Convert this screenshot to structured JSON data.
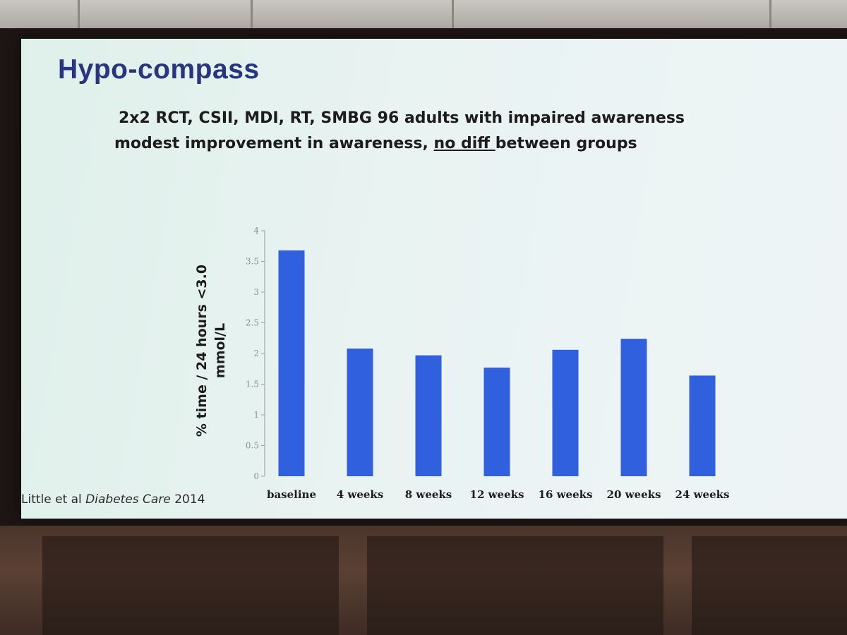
{
  "slide": {
    "title": "Hypo-compass",
    "subtitle_line1": "2x2 RCT, CSII, MDI, RT, SMBG 96 adults with impaired awareness",
    "subtitle_line2_pre": "modest improvement in awareness, ",
    "subtitle_line2_underlined": "no diff ",
    "subtitle_line2_post": "between groups",
    "citation_authors": "Little et al ",
    "citation_journal": "Diabetes Care",
    "citation_year": " 2014"
  },
  "chart_data": {
    "type": "bar",
    "title": "",
    "xlabel": "",
    "ylabel_line1": "% time / 24 hours <3.0",
    "ylabel_line2": "mmol/L",
    "categories": [
      "baseline",
      "4 weeks",
      "8 weeks",
      "12 weeks",
      "16 weeks",
      "20 weeks",
      "24 weeks"
    ],
    "values": [
      3.68,
      2.08,
      1.97,
      1.77,
      2.06,
      2.24,
      1.64
    ],
    "ylim": [
      0,
      4
    ],
    "yticks": [
      "0",
      "0.5",
      "1",
      "1.5",
      "2",
      "2.5",
      "3",
      "3.5",
      "4"
    ],
    "grid": false,
    "legend": "none",
    "bar_color": "#3060de"
  }
}
